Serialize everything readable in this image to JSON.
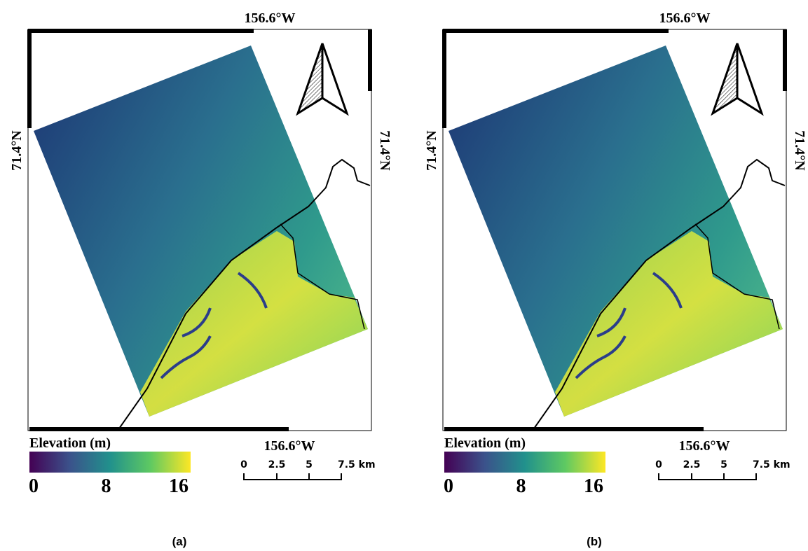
{
  "panels": [
    {
      "top_label": "156.6°W",
      "bottom_label": "156.6°W",
      "left_label": "71.4°N",
      "right_label": "71.4°N",
      "legend_title": "Elevation (m)",
      "colorbar_ticks": [
        0,
        8,
        16
      ],
      "scale_labels": [
        "0",
        "2.5",
        "5",
        "7.5 km"
      ],
      "caption": "(a)"
    },
    {
      "top_label": "156.6°W",
      "bottom_label": "156.6°W",
      "left_label": "71.4°N",
      "right_label": "71.4°N",
      "legend_title": "Elevation (m)",
      "colorbar_ticks": [
        0,
        8,
        16
      ],
      "scale_labels": [
        "0",
        "2.5",
        "5",
        "7.5 km"
      ],
      "caption": "(b)"
    }
  ]
}
